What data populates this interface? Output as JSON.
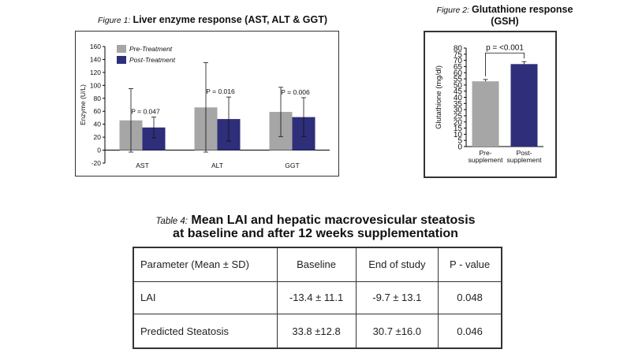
{
  "figure1": {
    "label": "Figure 1:",
    "title": "Liver enzyme response (AST, ALT & GGT)"
  },
  "figure2": {
    "label": "Figure 2:",
    "title_line1": "Glutathione response",
    "title_line2": "(GSH)"
  },
  "table4": {
    "label": "Table 4:",
    "title_line1": "Mean LAI and hepatic macrovesicular steatosis",
    "title_line2": "at baseline and after 12 weeks supplementation",
    "headers": [
      "Parameter (Mean ± SD)",
      "Baseline",
      "End of study",
      "P - value"
    ],
    "rows": [
      [
        "LAI",
        "-13.4 ± 11.1",
        "-9.7 ± 13.1",
        "0.048"
      ],
      [
        "Predicted Steatosis",
        "33.8 ±12.8",
        "30.7 ±16.0",
        "0.046"
      ]
    ]
  },
  "chart_data": [
    {
      "type": "bar",
      "ylabel": "Enzyme (U/L)",
      "ylim": [
        -20,
        160
      ],
      "yticks": [
        -20,
        0,
        20,
        40,
        60,
        80,
        100,
        120,
        140,
        160
      ],
      "categories": [
        "AST",
        "ALT",
        "GGT"
      ],
      "series": [
        {
          "name": "Pre-Treatment",
          "color": "#a6a6a6",
          "values": [
            46,
            66,
            59
          ],
          "errors": [
            49,
            69,
            38
          ]
        },
        {
          "name": "Post-Treatment",
          "color": "#2e2e7a",
          "values": [
            35,
            48,
            51
          ],
          "errors": [
            16,
            34,
            30
          ]
        }
      ],
      "annotations": [
        "P = 0.047",
        "P = 0.016",
        "P = 0.006"
      ],
      "legend": "top-left",
      "grid": false
    },
    {
      "type": "bar",
      "ylabel": "Glutathione (mg/dl)",
      "ylim": [
        0,
        80
      ],
      "yticks": [
        0,
        5,
        10,
        15,
        20,
        25,
        30,
        35,
        40,
        45,
        50,
        55,
        60,
        65,
        70,
        75,
        80
      ],
      "categories": [
        "Pre-\nsupplement",
        "Post-\nsupplement"
      ],
      "values": [
        53,
        67
      ],
      "errors": [
        1.5,
        2
      ],
      "colors": [
        "#a6a6a6",
        "#2e2e7a"
      ],
      "annotations": [
        "p = <0.001"
      ],
      "grid": false
    }
  ]
}
